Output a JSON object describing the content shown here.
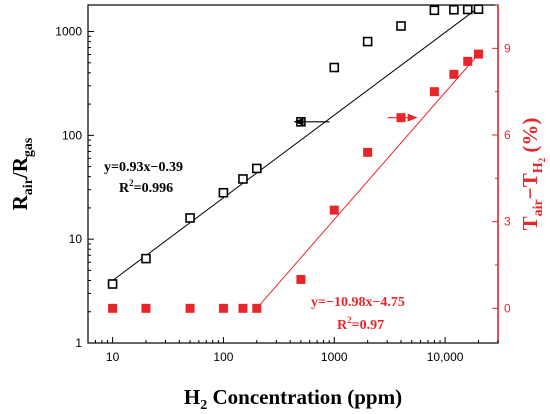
{
  "chart_data": {
    "type": "scatter",
    "x_scale": "log",
    "xlim": [
      6,
      30000
    ],
    "x_ticks": [
      {
        "value": 10,
        "label": "10"
      },
      {
        "value": 100,
        "label": "100"
      },
      {
        "value": 1000,
        "label": "1000"
      },
      {
        "value": 10000,
        "label": "10,000"
      }
    ],
    "xlabel": {
      "main": "H",
      "sub": "2",
      "rest": " Concentration (ppm)"
    },
    "left_axis": {
      "scale": "log",
      "ylim": [
        1,
        1800
      ],
      "ticks": [
        {
          "value": 1,
          "label": "1"
        },
        {
          "value": 10,
          "label": "10"
        },
        {
          "value": 100,
          "label": "100"
        },
        {
          "value": 1000,
          "label": "1000"
        }
      ],
      "label": {
        "main1": "R",
        "sub1": "air",
        "main2": "/R",
        "sub2": "gas"
      },
      "color": "#000000"
    },
    "right_axis": {
      "scale": "linear",
      "ylim": [
        -1.2,
        10.5
      ],
      "ticks": [
        {
          "value": 0,
          "label": "0"
        },
        {
          "value": 3,
          "label": "3"
        },
        {
          "value": 6,
          "label": "6"
        },
        {
          "value": 9,
          "label": "9"
        }
      ],
      "label": {
        "main1": "T",
        "sub1": "air",
        "dash": "−T",
        "sub2": "H",
        "sub3": "2",
        "rest": " (%)"
      },
      "color": "#e8262a"
    },
    "series": [
      {
        "axis": "left",
        "marker": "open-square",
        "color": "#000000",
        "points": [
          [
            10,
            3.7
          ],
          [
            20,
            6.5
          ],
          [
            50,
            16
          ],
          [
            100,
            28
          ],
          [
            150,
            38
          ],
          [
            200,
            48
          ],
          [
            500,
            135
          ],
          [
            1000,
            450
          ],
          [
            2000,
            800
          ],
          [
            4000,
            1130
          ],
          [
            8000,
            1600
          ],
          [
            12000,
            1620
          ],
          [
            16000,
            1630
          ],
          [
            20000,
            1640
          ]
        ]
      },
      {
        "axis": "right",
        "marker": "filled-square",
        "color": "#e8262a",
        "points": [
          [
            10,
            0
          ],
          [
            20,
            0
          ],
          [
            50,
            0
          ],
          [
            100,
            0
          ],
          [
            150,
            0
          ],
          [
            200,
            0
          ],
          [
            500,
            1.0
          ],
          [
            1000,
            3.4
          ],
          [
            2000,
            5.4
          ],
          [
            4000,
            6.6
          ],
          [
            8000,
            7.5
          ],
          [
            12000,
            8.1
          ],
          [
            16000,
            8.55
          ],
          [
            20000,
            8.8
          ]
        ]
      }
    ],
    "fit_lines": [
      {
        "axis": "left",
        "color": "#000000",
        "x": [
          10,
          20000
        ],
        "y": [
          4.0,
          1700
        ]
      },
      {
        "axis": "right",
        "color": "#e8262a",
        "x": [
          200,
          20000
        ],
        "y": [
          0,
          8.8
        ]
      }
    ],
    "annotations": {
      "black_eq": "y=0.93x−0.39",
      "black_r2": {
        "main": "R",
        "sup": "2",
        "rest": "=0.996"
      },
      "red_eq": "y=−10.98x−4.75",
      "red_r2": {
        "main": "R",
        "sup": "2",
        "rest": "=0.97"
      }
    },
    "arrows": [
      {
        "target": "left-axis",
        "color": "#000000",
        "at": [
          800,
          135
        ]
      },
      {
        "target": "right-axis",
        "color": "#e8262a",
        "at": [
          2000,
          6.6
        ]
      }
    ]
  }
}
